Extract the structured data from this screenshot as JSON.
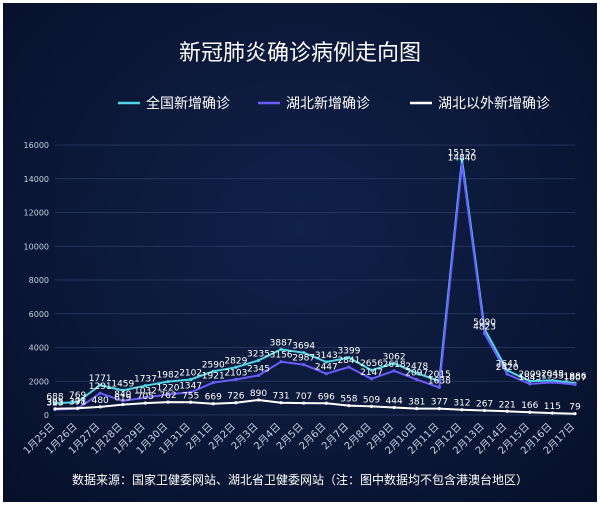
{
  "chart_data": {
    "type": "line",
    "title": "新冠肺炎确诊病例走向图",
    "categories": [
      "1月25日",
      "1月26日",
      "1月27日",
      "1月28日",
      "1月29日",
      "1月30日",
      "1月31日",
      "2月1日",
      "2月2日",
      "2月3日",
      "2月4日",
      "2月5日",
      "2月6日",
      "2月7日",
      "2月8日",
      "2月9日",
      "2月10日",
      "2月11日",
      "2月12日",
      "2月13日",
      "2月14日",
      "2月15日",
      "2月16日",
      "2月17日"
    ],
    "series": [
      {
        "name": "全国新增确诊",
        "color": "#4fd6e6",
        "values": [
          688,
          769,
          1771,
          1459,
          1737,
          1982,
          2102,
          2590,
          2829,
          3235,
          3887,
          3694,
          3143,
          3399,
          2656,
          3062,
          2478,
          2015,
          15152,
          5090,
          2641,
          2009,
          2048,
          1886
        ]
      },
      {
        "name": "湖北新增确诊",
        "color": "#6a5cff",
        "values": [
          323,
          371,
          1291,
          840,
          1032,
          1220,
          1347,
          1921,
          2103,
          2345,
          3156,
          2987,
          2447,
          2841,
          2147,
          2618,
          2097,
          1638,
          14840,
          4823,
          2420,
          1843,
          1933,
          1807
        ]
      },
      {
        "name": "湖北以外新增确诊",
        "color": "#ffffff",
        "values": [
          365,
          398,
          480,
          619,
          705,
          762,
          755,
          669,
          726,
          890,
          731,
          707,
          696,
          558,
          509,
          444,
          381,
          377,
          312,
          267,
          221,
          166,
          115,
          79
        ]
      }
    ],
    "ylim": [
      0,
      16000
    ],
    "yticks": [
      0,
      2000,
      4000,
      6000,
      8000,
      10000,
      12000,
      14000,
      16000
    ],
    "grid": true,
    "legend_position": "top"
  },
  "footer": {
    "source_text": "数据来源：国家卫健委网站、湖北省卫健委网站（注：图中数据均不包含港澳台地区）"
  }
}
